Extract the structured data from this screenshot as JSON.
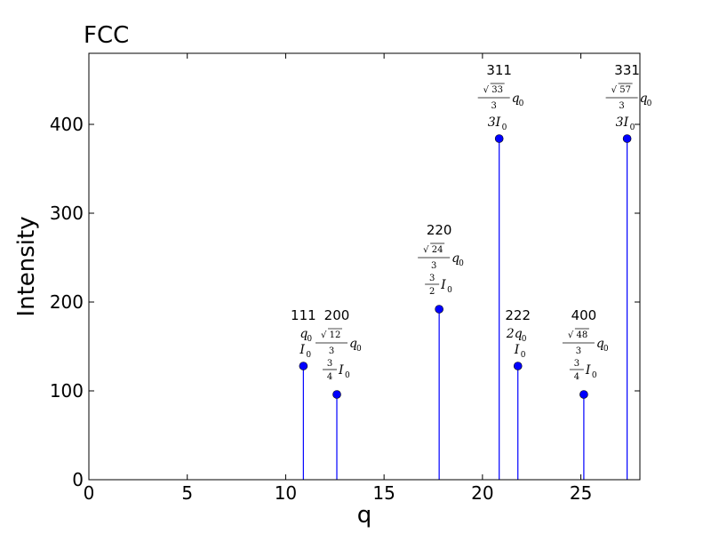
{
  "chart_data": {
    "type": "stem",
    "title": "FCC",
    "xlabel": "q",
    "ylabel": "Intensity",
    "xlim": [
      0,
      28
    ],
    "ylim": [
      0,
      480
    ],
    "xticks": [
      "0",
      "5",
      "10",
      "15",
      "20",
      "25"
    ],
    "yticks": [
      "0",
      "100",
      "200",
      "300",
      "400"
    ],
    "xtick_values": [
      0,
      5,
      10,
      15,
      20,
      25
    ],
    "ytick_values": [
      0,
      100,
      200,
      300,
      400
    ],
    "color": "#0000ff",
    "points": [
      {
        "hkl": "111",
        "x": 10.9,
        "y": 128,
        "q_num": "",
        "q_den": "",
        "q_coef": "",
        "i_num": "",
        "i_den": "",
        "i_coef": ""
      },
      {
        "hkl": "200",
        "x": 12.6,
        "y": 96,
        "q_num": "12",
        "q_den": "3",
        "q_coef": "",
        "i_num": "3",
        "i_den": "4",
        "i_coef": ""
      },
      {
        "hkl": "220",
        "x": 17.8,
        "y": 192,
        "q_num": "24",
        "q_den": "3",
        "q_coef": "",
        "i_num": "3",
        "i_den": "2",
        "i_coef": ""
      },
      {
        "hkl": "311",
        "x": 20.85,
        "y": 384,
        "q_num": "33",
        "q_den": "3",
        "q_coef": "",
        "i_num": "",
        "i_den": "",
        "i_coef": "3"
      },
      {
        "hkl": "222",
        "x": 21.8,
        "y": 128,
        "q_num": "",
        "q_den": "",
        "q_coef": "2",
        "i_num": "",
        "i_den": "",
        "i_coef": ""
      },
      {
        "hkl": "400",
        "x": 25.15,
        "y": 96,
        "q_num": "48",
        "q_den": "3",
        "q_coef": "",
        "i_num": "3",
        "i_den": "4",
        "i_coef": ""
      },
      {
        "hkl": "331",
        "x": 27.35,
        "y": 384,
        "q_num": "57",
        "q_den": "3",
        "q_coef": "",
        "i_num": "",
        "i_den": "",
        "i_coef": "3"
      }
    ]
  }
}
